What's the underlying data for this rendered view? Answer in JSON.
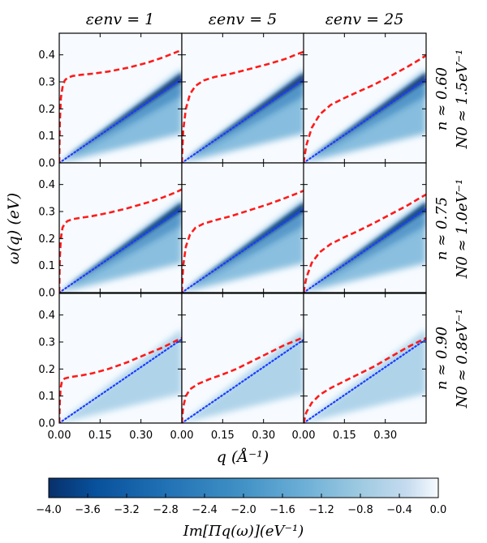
{
  "chart_data": {
    "type": "heatmap",
    "layout": "3x3 grid of panels",
    "column_titles": [
      "εenv = 1",
      "εenv = 5",
      "εenv = 25"
    ],
    "row_labels": [
      {
        "n": "n ≈ 0.60",
        "N0": "N0 ≈ 1.5eV⁻¹"
      },
      {
        "n": "n ≈ 0.75",
        "N0": "N0 ≈ 1.0eV⁻¹"
      },
      {
        "n": "n ≈ 0.90",
        "N0": "N0 ≈ 0.8eV⁻¹"
      }
    ],
    "xlabel": "q (Å⁻¹)",
    "ylabel": "ω(q) (eV)",
    "xlim": [
      0.0,
      0.45
    ],
    "ylim": [
      0.0,
      0.48
    ],
    "x_ticks": [
      "0.00",
      "0.15",
      "0.30",
      "0.00",
      "0.15",
      "0.30",
      "0.00",
      "0.15",
      "0.30"
    ],
    "y_ticks": [
      "0.0",
      "0.1",
      "0.2",
      "0.3",
      "0.4"
    ],
    "colorbar": {
      "label": "Im[Πq(ω)](eV⁻¹)",
      "range": [
        -4.0,
        0.0
      ],
      "ticks": [
        "−4.0",
        "−3.6",
        "−3.2",
        "−2.8",
        "−2.4",
        "−2.0",
        "−1.6",
        "−1.2",
        "−0.8",
        "−0.4",
        "0.0"
      ],
      "colormap": "Blues (dark = most negative)"
    },
    "colors": {
      "plasmon": "#ff1a1a",
      "dotted": "#1a3cff"
    },
    "continuum_slope_eV_per_inv_A": 0.69,
    "continuum_intensity_by_row": [
      1.0,
      0.95,
      0.35
    ],
    "plasmon_curves": [
      [
        {
          "q": [
            0.0,
            0.002,
            0.006,
            0.012,
            0.02,
            0.03,
            0.05,
            0.08,
            0.12,
            0.18,
            0.25,
            0.32,
            0.38,
            0.43,
            0.45
          ],
          "w": [
            0.0,
            0.15,
            0.24,
            0.28,
            0.305,
            0.315,
            0.322,
            0.326,
            0.33,
            0.338,
            0.352,
            0.37,
            0.39,
            0.41,
            0.418
          ]
        },
        {
          "q": [
            0.0,
            0.005,
            0.015,
            0.03,
            0.05,
            0.08,
            0.12,
            0.18,
            0.25,
            0.32,
            0.38,
            0.43,
            0.45
          ],
          "w": [
            0.0,
            0.12,
            0.2,
            0.255,
            0.285,
            0.305,
            0.318,
            0.33,
            0.348,
            0.367,
            0.385,
            0.405,
            0.412
          ]
        },
        {
          "q": [
            0.0,
            0.01,
            0.03,
            0.06,
            0.1,
            0.15,
            0.2,
            0.26,
            0.32,
            0.38,
            0.43,
            0.45
          ],
          "w": [
            0.0,
            0.065,
            0.13,
            0.18,
            0.215,
            0.24,
            0.263,
            0.29,
            0.322,
            0.355,
            0.385,
            0.398
          ]
        }
      ],
      [
        {
          "q": [
            0.0,
            0.002,
            0.006,
            0.012,
            0.02,
            0.03,
            0.05,
            0.08,
            0.12,
            0.18,
            0.25,
            0.32,
            0.38,
            0.43,
            0.45
          ],
          "w": [
            0.0,
            0.13,
            0.2,
            0.24,
            0.255,
            0.265,
            0.272,
            0.277,
            0.283,
            0.295,
            0.312,
            0.332,
            0.352,
            0.372,
            0.382
          ]
        },
        {
          "q": [
            0.0,
            0.005,
            0.015,
            0.03,
            0.05,
            0.08,
            0.12,
            0.18,
            0.25,
            0.32,
            0.38,
            0.43,
            0.45
          ],
          "w": [
            0.0,
            0.1,
            0.17,
            0.215,
            0.24,
            0.255,
            0.267,
            0.283,
            0.305,
            0.328,
            0.35,
            0.37,
            0.378
          ]
        },
        {
          "q": [
            0.0,
            0.01,
            0.03,
            0.06,
            0.1,
            0.15,
            0.2,
            0.26,
            0.32,
            0.38,
            0.43,
            0.45
          ],
          "w": [
            0.0,
            0.055,
            0.11,
            0.15,
            0.18,
            0.205,
            0.228,
            0.258,
            0.29,
            0.322,
            0.352,
            0.363
          ]
        }
      ],
      [
        {
          "q": [
            0.0,
            0.002,
            0.005,
            0.01,
            0.02,
            0.04,
            0.08,
            0.12,
            0.18,
            0.25,
            0.32,
            0.38,
            0.43,
            0.45
          ],
          "w": [
            0.0,
            0.08,
            0.13,
            0.155,
            0.165,
            0.17,
            0.176,
            0.184,
            0.2,
            0.225,
            0.255,
            0.28,
            0.305,
            0.315
          ]
        },
        {
          "q": [
            0.0,
            0.005,
            0.015,
            0.03,
            0.06,
            0.1,
            0.15,
            0.2,
            0.26,
            0.32,
            0.38,
            0.43,
            0.45
          ],
          "w": [
            0.0,
            0.06,
            0.1,
            0.125,
            0.145,
            0.162,
            0.18,
            0.2,
            0.23,
            0.26,
            0.29,
            0.31,
            0.322
          ]
        },
        {
          "q": [
            0.0,
            0.01,
            0.03,
            0.06,
            0.1,
            0.15,
            0.2,
            0.26,
            0.32,
            0.38,
            0.43,
            0.45
          ],
          "w": [
            0.0,
            0.04,
            0.075,
            0.105,
            0.13,
            0.155,
            0.18,
            0.21,
            0.245,
            0.28,
            0.305,
            0.315
          ]
        }
      ]
    ]
  }
}
